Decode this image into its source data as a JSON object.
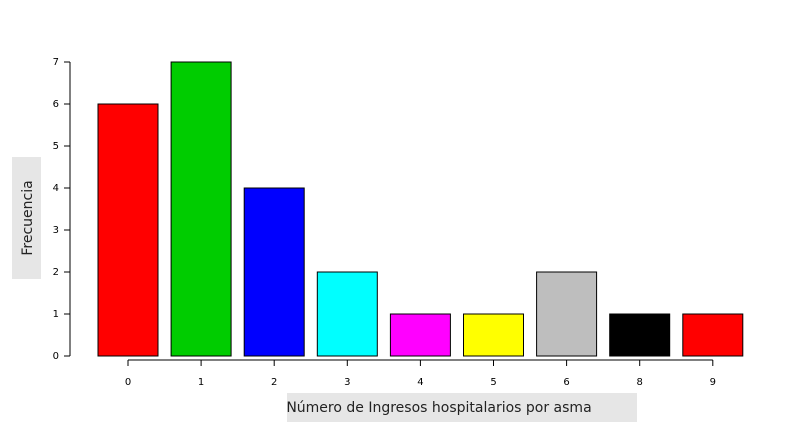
{
  "chart_data": {
    "type": "bar",
    "title": "",
    "xlabel": "Número de Ingresos hospitalarios por asma",
    "ylabel": "Frecuencia",
    "categories": [
      "0",
      "1",
      "2",
      "3",
      "4",
      "5",
      "6",
      "8",
      "9"
    ],
    "values": [
      6,
      7,
      4,
      2,
      1,
      1,
      2,
      1,
      1
    ],
    "bar_colors": [
      "#ff0000",
      "#00cc00",
      "#0000ff",
      "#00ffff",
      "#ff00ff",
      "#ffff00",
      "#bebebe",
      "#000000",
      "#ff0000"
    ],
    "ylim": [
      0,
      7
    ],
    "yticks": [
      0,
      1,
      2,
      3,
      4,
      5,
      6,
      7
    ],
    "grid": false,
    "legend": "none",
    "label_background": "#e6e6e6"
  }
}
